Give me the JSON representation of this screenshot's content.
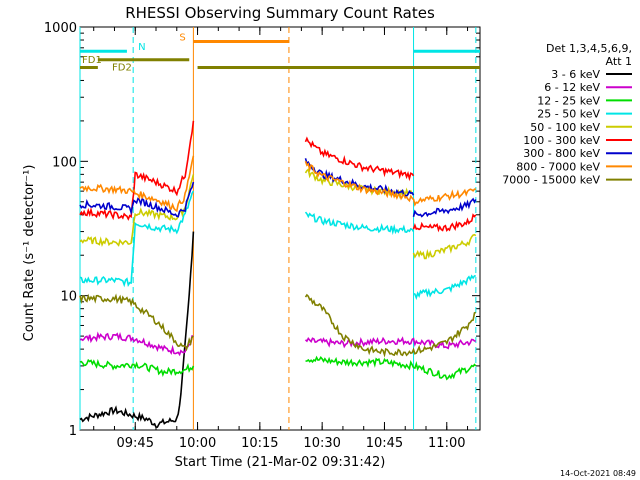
{
  "chart_data": {
    "type": "line",
    "title": "RHESSI Observing Summary Count Rates",
    "xlabel": "Start Time (21-Mar-02 09:31:42)",
    "ylabel": "Count Rate (s⁻¹ detector⁻¹)",
    "y_scale": "log",
    "ylim": [
      1,
      1000
    ],
    "xlim": [
      "09:31:42",
      "11:08:00"
    ],
    "x_ticks": [
      "09:45",
      "10:00",
      "10:15",
      "10:30",
      "10:45",
      "11:00"
    ],
    "y_ticks": [
      "1",
      "10",
      "100",
      "1000"
    ],
    "legend_title": "Det 1,3,4,5,6,9,",
    "legend_subtitle": "Att 1",
    "legend_position": "right",
    "series": [
      {
        "name": "3 - 6 keV",
        "color": "#000000",
        "segments": [
          {
            "x": [
              "09:31:42",
              "09:40",
              "09:48",
              "09:50",
              "09:55",
              "09:56",
              "09:58",
              "09:59"
            ],
            "y": [
              1.2,
              1.4,
              1.2,
              1.1,
              1.2,
              1.8,
              10,
              30
            ]
          }
        ]
      },
      {
        "name": "6 - 12 keV",
        "color": "#cc00cc",
        "segments": [
          {
            "x": [
              "09:31:42",
              "09:40",
              "09:45",
              "09:52",
              "09:57",
              "09:59"
            ],
            "y": [
              4.8,
              5.0,
              4.8,
              4.0,
              3.8,
              5.0
            ]
          },
          {
            "x": [
              "10:26",
              "10:35",
              "10:45",
              "10:52",
              "11:00",
              "11:07"
            ],
            "y": [
              4.6,
              4.4,
              4.6,
              4.6,
              4.2,
              4.6
            ]
          }
        ]
      },
      {
        "name": "12 - 25 keV",
        "color": "#00dd00",
        "segments": [
          {
            "x": [
              "09:31:42",
              "09:40",
              "09:45",
              "09:52",
              "09:57",
              "09:59"
            ],
            "y": [
              3.2,
              3.0,
              3.1,
              2.7,
              2.8,
              3.0
            ]
          },
          {
            "x": [
              "10:26",
              "10:35",
              "10:45",
              "10:52",
              "11:00",
              "11:07"
            ],
            "y": [
              3.4,
              3.2,
              3.2,
              3.0,
              2.5,
              3.0
            ]
          }
        ]
      },
      {
        "name": "25 - 50 keV",
        "color": "#00e5e5",
        "segments": [
          {
            "x": [
              "09:31:42",
              "09:40",
              "09:44",
              "09:45",
              "09:50",
              "09:55",
              "09:57",
              "09:59"
            ],
            "y": [
              13,
              13,
              12.5,
              35,
              32,
              31,
              40,
              60
            ]
          },
          {
            "x": [
              "10:26",
              "10:30",
              "10:40",
              "10:50",
              "10:52"
            ],
            "y": [
              40,
              36,
              32,
              31,
              30
            ]
          },
          {
            "x": [
              "10:52",
              "10:55",
              "11:00",
              "11:05",
              "11:07"
            ],
            "y": [
              10,
              10.5,
              11,
              13,
              14
            ]
          }
        ]
      },
      {
        "name": "50 - 100 keV",
        "color": "#cccc00",
        "segments": [
          {
            "x": [
              "09:31:42",
              "09:40",
              "09:44",
              "09:45",
              "09:50",
              "09:55",
              "09:57",
              "09:59"
            ],
            "y": [
              26,
              25,
              25,
              42,
              40,
              38,
              45,
              80
            ]
          },
          {
            "x": [
              "10:26",
              "10:30",
              "10:40",
              "10:50",
              "10:52"
            ],
            "y": [
              85,
              72,
              62,
              58,
              57
            ]
          },
          {
            "x": [
              "10:52",
              "10:55",
              "11:00",
              "11:05",
              "11:07"
            ],
            "y": [
              20,
              20,
              22,
              25,
              28
            ]
          }
        ]
      },
      {
        "name": "100 - 300 keV",
        "color": "#ff0000",
        "segments": [
          {
            "x": [
              "09:31:42",
              "09:40",
              "09:44",
              "09:45",
              "09:50",
              "09:55",
              "09:57",
              "09:59"
            ],
            "y": [
              42,
              40,
              38,
              80,
              70,
              60,
              80,
              200
            ]
          },
          {
            "x": [
              "10:26",
              "10:30",
              "10:40",
              "10:50",
              "10:52"
            ],
            "y": [
              145,
              115,
              90,
              80,
              78
            ]
          },
          {
            "x": [
              "10:52",
              "10:55",
              "11:00",
              "11:05",
              "11:07"
            ],
            "y": [
              33,
              32,
              32,
              35,
              40
            ]
          }
        ]
      },
      {
        "name": "300 - 800 keV",
        "color": "#0000cc",
        "segments": [
          {
            "x": [
              "09:31:42",
              "09:40",
              "09:44",
              "09:45",
              "09:50",
              "09:55",
              "09:57",
              "09:59"
            ],
            "y": [
              48,
              46,
              44,
              52,
              46,
              40,
              45,
              70
            ]
          },
          {
            "x": [
              "10:26",
              "10:30",
              "10:40",
              "10:50",
              "10:52"
            ],
            "y": [
              100,
              80,
              65,
              58,
              56
            ]
          },
          {
            "x": [
              "10:52",
              "10:55",
              "11:00",
              "11:05",
              "11:07"
            ],
            "y": [
              40,
              41,
              43,
              47,
              52
            ]
          }
        ]
      },
      {
        "name": "800 - 7000 keV",
        "color": "#ff8800",
        "segments": [
          {
            "x": [
              "09:31:42",
              "09:40",
              "09:44",
              "09:45",
              "09:50",
              "09:55",
              "09:57",
              "09:59"
            ],
            "y": [
              64,
              62,
              60,
              58,
              52,
              45,
              55,
              110
            ]
          },
          {
            "x": [
              "10:26",
              "10:30",
              "10:40",
              "10:50",
              "10:52"
            ],
            "y": [
              95,
              78,
              62,
              55,
              52
            ]
          },
          {
            "x": [
              "10:52",
              "10:55",
              "11:00",
              "11:05",
              "11:07"
            ],
            "y": [
              50,
              52,
              55,
              58,
              62
            ]
          }
        ]
      },
      {
        "name": "7000 - 15000 keV",
        "color": "#808000",
        "segments": [
          {
            "x": [
              "09:31:42",
              "09:40",
              "09:44",
              "09:50",
              "09:55",
              "09:57",
              "09:59"
            ],
            "y": [
              9.5,
              9.5,
              9.0,
              6.5,
              4.5,
              4.0,
              5.0
            ]
          },
          {
            "x": [
              "10:26",
              "10:30",
              "10:35",
              "10:40",
              "10:45",
              "10:50",
              "10:55",
              "11:00",
              "11:05",
              "11:07"
            ],
            "y": [
              10,
              8,
              5,
              4,
              3.8,
              3.8,
              4,
              4.5,
              6,
              7.5
            ]
          }
        ]
      }
    ],
    "flag_bars": [
      {
        "label": "",
        "color": "#00e5e5",
        "y": 660,
        "ranges": [
          [
            "09:31:42",
            "09:43"
          ],
          [
            "10:52",
            "11:08"
          ]
        ]
      },
      {
        "label": "S",
        "color": "#ff8800",
        "y": 780,
        "ranges": [
          [
            "09:59",
            "10:22"
          ]
        ]
      },
      {
        "label": "FD1",
        "color": "#808000",
        "y": 570,
        "ranges": [
          [
            "09:36",
            "09:58"
          ]
        ]
      },
      {
        "label": "FD2",
        "color": "#808000",
        "y": 500,
        "ranges": [
          [
            "09:31:42",
            "09:36"
          ],
          [
            "10:00",
            "11:08"
          ]
        ]
      }
    ],
    "markers": [
      {
        "label": "N",
        "color": "#00e5e5",
        "style": "dashed",
        "x": "09:44:30"
      },
      {
        "label": "",
        "color": "#00e5e5",
        "style": "solid",
        "x": "10:52"
      },
      {
        "label": "",
        "color": "#00e5e5",
        "style": "dashed",
        "x": "11:07"
      },
      {
        "label": "",
        "color": "#ff8800",
        "style": "solid",
        "x": "09:59"
      },
      {
        "label": "",
        "color": "#ff8800",
        "style": "dashed",
        "x": "10:22"
      },
      {
        "label": "",
        "color": "#00e5e5",
        "style": "solid",
        "x": "09:31:42"
      }
    ]
  },
  "footer": {
    "timestamp": "14-Oct-2021 08:49"
  }
}
